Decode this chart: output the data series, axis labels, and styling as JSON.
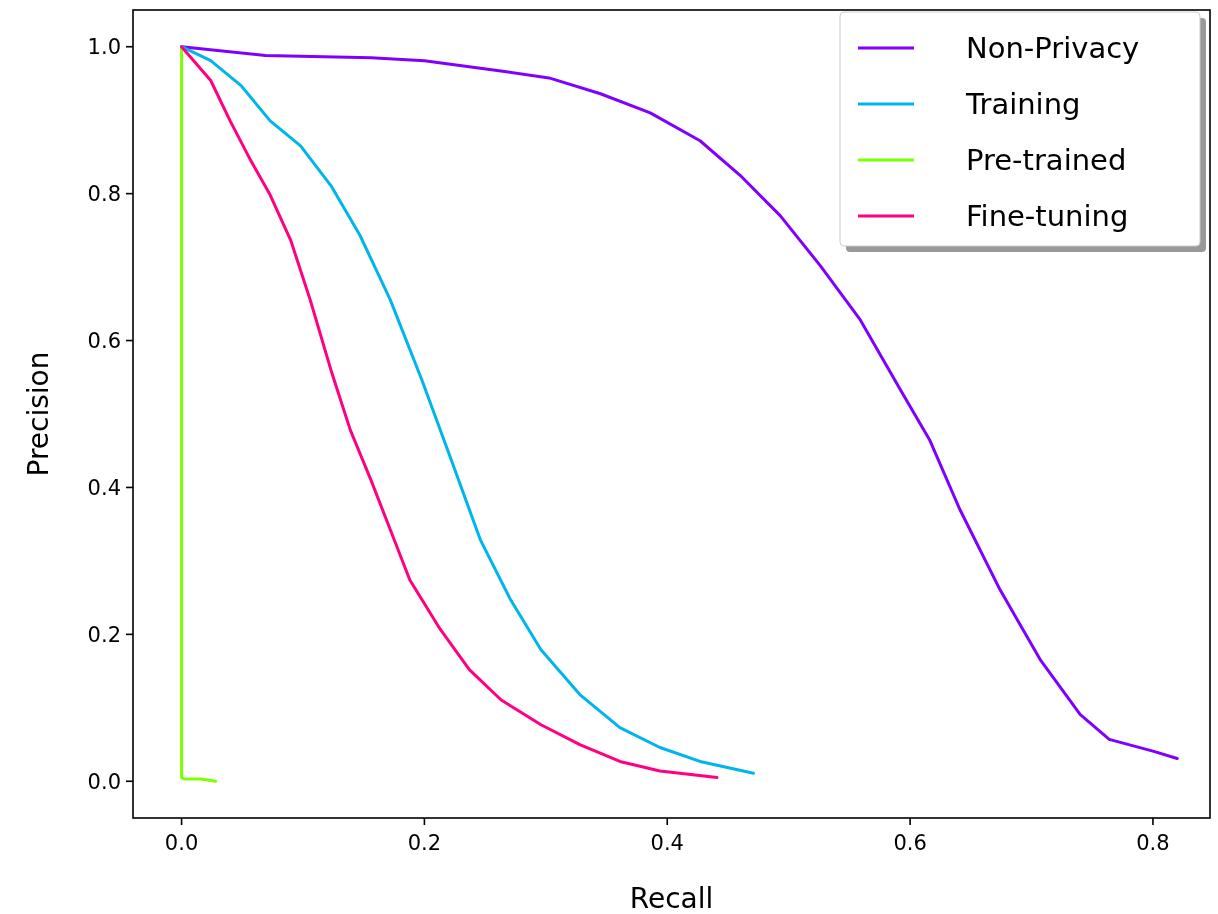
{
  "chart_data": {
    "type": "line",
    "xlabel": "Recall",
    "ylabel": "Precision",
    "xlim": [
      -0.04,
      0.847
    ],
    "ylim": [
      -0.05,
      1.05
    ],
    "xticks": [
      {
        "value": 0,
        "label": "0.0"
      },
      {
        "value": 0.2,
        "label": "0.2"
      },
      {
        "value": 0.4,
        "label": "0.4"
      },
      {
        "value": 0.6,
        "label": "0.6"
      },
      {
        "value": 0.8,
        "label": "0.8"
      }
    ],
    "yticks": [
      {
        "value": 0,
        "label": "0.0"
      },
      {
        "value": 0.2,
        "label": "0.2"
      },
      {
        "value": 0.4,
        "label": "0.4"
      },
      {
        "value": 0.6,
        "label": "0.6"
      },
      {
        "value": 0.8,
        "label": "0.8"
      },
      {
        "value": 1,
        "label": "1.0"
      }
    ],
    "legend": "top right",
    "grid": false,
    "marker": "none",
    "line_style": "solid",
    "series": [
      {
        "name": "Non-Privacy",
        "color": "#8000ff",
        "x": [
          0,
          0.069,
          0.156,
          0.2,
          0.263,
          0.304,
          0.345,
          0.386,
          0.427,
          0.46,
          0.493,
          0.526,
          0.559,
          0.592,
          0.616,
          0.641,
          0.674,
          0.707,
          0.74,
          0.764,
          0.8,
          0.82
        ],
        "values": [
          1,
          0.988,
          0.985,
          0.981,
          0.967,
          0.957,
          0.936,
          0.91,
          0.872,
          0.825,
          0.77,
          0.702,
          0.628,
          0.533,
          0.465,
          0.37,
          0.261,
          0.166,
          0.091,
          0.057,
          0.041,
          0.031
        ]
      },
      {
        "name": "Training",
        "color": "#00b5eb",
        "x": [
          0,
          0.024,
          0.049,
          0.073,
          0.098,
          0.123,
          0.147,
          0.172,
          0.198,
          0.222,
          0.246,
          0.271,
          0.296,
          0.328,
          0.361,
          0.394,
          0.427,
          0.471
        ],
        "values": [
          1,
          0.981,
          0.947,
          0.899,
          0.865,
          0.811,
          0.743,
          0.655,
          0.546,
          0.438,
          0.329,
          0.247,
          0.179,
          0.118,
          0.073,
          0.046,
          0.027,
          0.011
        ]
      },
      {
        "name": "Pre-trained",
        "color": "#80ff00",
        "x": [
          0,
          0,
          0.003,
          0.016,
          0.028
        ],
        "values": [
          1,
          0.005,
          0.003,
          0.003,
          0
        ]
      },
      {
        "name": "Fine-tuning",
        "color": "#ff0080",
        "x": [
          0,
          0.024,
          0.04,
          0.057,
          0.073,
          0.09,
          0.106,
          0.123,
          0.139,
          0.156,
          0.172,
          0.188,
          0.213,
          0.237,
          0.263,
          0.296,
          0.328,
          0.361,
          0.394,
          0.441
        ],
        "values": [
          1,
          0.954,
          0.899,
          0.845,
          0.798,
          0.736,
          0.655,
          0.56,
          0.478,
          0.41,
          0.342,
          0.274,
          0.207,
          0.152,
          0.111,
          0.077,
          0.05,
          0.027,
          0.014,
          0.005
        ]
      }
    ]
  }
}
